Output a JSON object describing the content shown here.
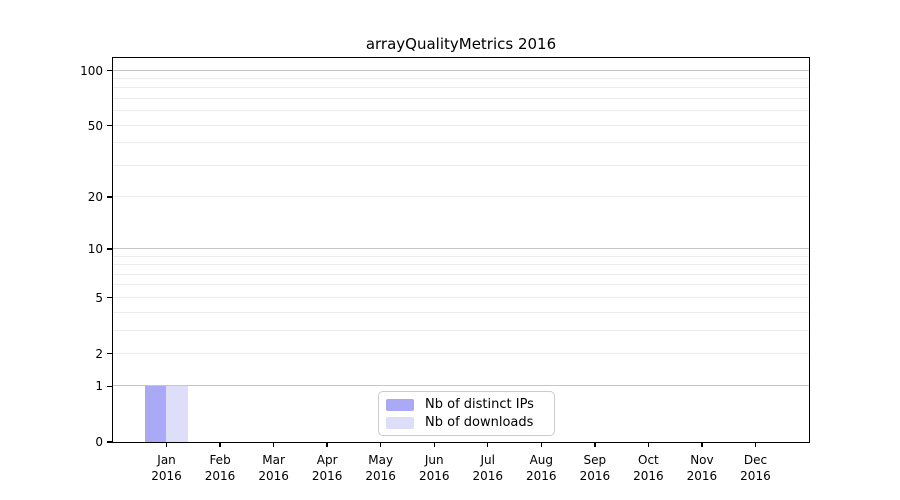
{
  "chart_data": {
    "type": "bar",
    "title": "arrayQualityMetrics 2016",
    "categories": [
      "Jan 2016",
      "Feb 2016",
      "Mar 2016",
      "Apr 2016",
      "May 2016",
      "Jun 2016",
      "Jul 2016",
      "Aug 2016",
      "Sep 2016",
      "Oct 2016",
      "Nov 2016",
      "Dec 2016"
    ],
    "series": [
      {
        "name": "Nb of distinct IPs",
        "color": "#a9a9f5",
        "values": [
          1,
          0,
          0,
          0,
          0,
          0,
          0,
          0,
          0,
          0,
          0,
          0
        ]
      },
      {
        "name": "Nb of downloads",
        "color": "#dedef8",
        "values": [
          1,
          0,
          0,
          0,
          0,
          0,
          0,
          0,
          0,
          0,
          0,
          0
        ]
      }
    ],
    "xlabel": "",
    "ylabel": "",
    "yscale": "log1p",
    "yticks": [
      0,
      1,
      2,
      5,
      10,
      20,
      50,
      100
    ],
    "minor_gridlines": [
      2,
      3,
      4,
      5,
      6,
      7,
      8,
      9,
      20,
      30,
      40,
      50,
      60,
      70,
      80,
      90
    ],
    "major_gridlines": [
      1,
      10,
      100
    ],
    "ylim": [
      0,
      117
    ],
    "grid": "horizontal",
    "legend_position": "lower-center"
  },
  "colors": {
    "grid_major": "#c6c6c6",
    "grid_minor": "#ececec",
    "spine": "#000000",
    "legend_border": "#cccccc",
    "background": "#ffffff"
  }
}
